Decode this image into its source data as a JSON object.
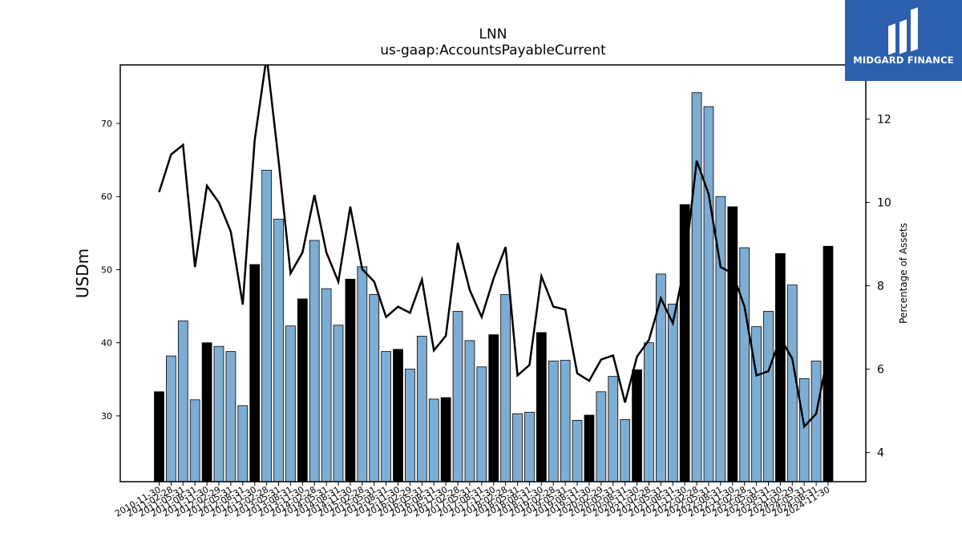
{
  "chart_data": {
    "type": "bar",
    "title": "LNN",
    "subtitle": "us-gaap:AccountsPayableCurrent",
    "ylabel": "USDm",
    "y2label": "Percentage of Assets",
    "ylim": [
      21,
      78
    ],
    "y2lim": [
      3.3,
      13.3
    ],
    "yticks": [
      30,
      40,
      50,
      60,
      70
    ],
    "y2ticks": [
      4,
      6,
      8,
      10,
      12
    ],
    "categories": [
      "2010-11-30",
      "2011-02-28",
      "2011-05-31",
      "2011-08-31",
      "2011-11-30",
      "2012-02-29",
      "2012-05-31",
      "2012-08-31",
      "2012-11-30",
      "2013-02-28",
      "2013-05-31",
      "2013-08-31",
      "2013-11-30",
      "2014-02-28",
      "2014-05-31",
      "2014-08-31",
      "2014-11-30",
      "2015-02-28",
      "2015-05-31",
      "2015-08-31",
      "2015-11-30",
      "2016-02-29",
      "2016-05-31",
      "2016-08-31",
      "2016-11-30",
      "2017-02-28",
      "2017-05-31",
      "2017-08-31",
      "2017-11-30",
      "2018-02-28",
      "2018-05-31",
      "2018-08-31",
      "2018-11-30",
      "2019-02-28",
      "2019-05-31",
      "2019-08-31",
      "2019-11-30",
      "2020-02-29",
      "2020-05-31",
      "2020-08-31",
      "2020-11-30",
      "2021-02-28",
      "2021-05-31",
      "2021-08-31",
      "2021-11-30",
      "2022-02-28",
      "2022-05-31",
      "2022-08-31",
      "2022-11-30",
      "2023-02-28",
      "2023-05-31",
      "2023-08-31",
      "2023-11-30",
      "2024-02-29",
      "2024-05-31",
      "2024-08-31",
      "2024-11-30"
    ],
    "xtick_labels": [
      "2010-11-30",
      "2011-02-28",
      "2011-05-31",
      "2011-08-31",
      "2011-11-30",
      "2012-02-29",
      "2012-05-31",
      "2012-08-31",
      "2012-11-30",
      "2013-02-28",
      "2013-05-31",
      "2013-08-31",
      "2013-11-30",
      "2014-02-28",
      "2014-05-31",
      "2014-08-31",
      "2014-11-30",
      "2015-02-28",
      "2015-05-31",
      "2015-08-31",
      "2015-11-30",
      "2016-02-29",
      "2016-05-31",
      "2016-08-31",
      "2016-11-30",
      "2017-02-28",
      "2017-05-31",
      "2017-08-31",
      "2017-11-30",
      "2018-02-28",
      "2018-05-31",
      "2018-08-31",
      "2018-11-30",
      "2019-02-28",
      "2019-05-31",
      "2019-08-31",
      "2019-11-30",
      "2020-02-29",
      "2020-05-31",
      "2020-08-31",
      "2020-11-30",
      "2021-02-28",
      "2021-05-31",
      "2021-08-31",
      "2021-11-30",
      "2022-02-28",
      "2022-05-31",
      "2022-08-31",
      "2022-11-30",
      "2023-02-28",
      "2023-05-31",
      "2023-08-31",
      "2023-11-30",
      "2024-02-29",
      "2024-05-31",
      "2024-08-31",
      "2024-11-30"
    ],
    "series": [
      {
        "kind": "bar",
        "axis": "left",
        "values": [
          33.3,
          38.2,
          43.0,
          32.2,
          40.0,
          39.5,
          38.8,
          31.4,
          50.7,
          63.6,
          56.9,
          42.3,
          46.0,
          54.0,
          47.4,
          42.4,
          48.7,
          50.4,
          46.6,
          38.8,
          39.1,
          36.4,
          40.9,
          32.3,
          32.5,
          44.3,
          40.3,
          36.7,
          41.1,
          46.6,
          30.3,
          30.5,
          41.4,
          37.5,
          37.6,
          29.4,
          30.1,
          33.3,
          35.4,
          29.5,
          36.3,
          40.0,
          49.4,
          45.3,
          58.9,
          74.2,
          72.3,
          60.0,
          58.6,
          53.0,
          42.2,
          44.3,
          52.2,
          47.9,
          35.1,
          37.5,
          53.2
        ],
        "highlight_every": 4
      },
      {
        "kind": "line",
        "axis": "right",
        "values": [
          10.25,
          11.15,
          11.38,
          8.45,
          10.4,
          10.0,
          9.3,
          7.55,
          11.5,
          13.5,
          11.0,
          8.3,
          8.8,
          10.18,
          8.8,
          8.1,
          9.9,
          8.4,
          8.1,
          7.25,
          7.5,
          7.35,
          8.15,
          6.45,
          6.8,
          9.03,
          7.9,
          7.25,
          8.18,
          8.93,
          5.85,
          6.1,
          8.23,
          7.5,
          7.43,
          5.9,
          5.72,
          6.23,
          6.33,
          5.2,
          6.3,
          6.7,
          7.7,
          7.1,
          8.5,
          11.0,
          10.2,
          8.45,
          8.3,
          7.5,
          5.85,
          5.95,
          6.75,
          6.25,
          4.62,
          4.93,
          6.38
        ]
      }
    ],
    "colors": {
      "bar": "#7eadd3",
      "bar_highlight": "#000000",
      "line": "#000000"
    },
    "grid": false
  },
  "logo": {
    "text": "MIDGARD FINANCE",
    "color": "#2c5fad"
  }
}
